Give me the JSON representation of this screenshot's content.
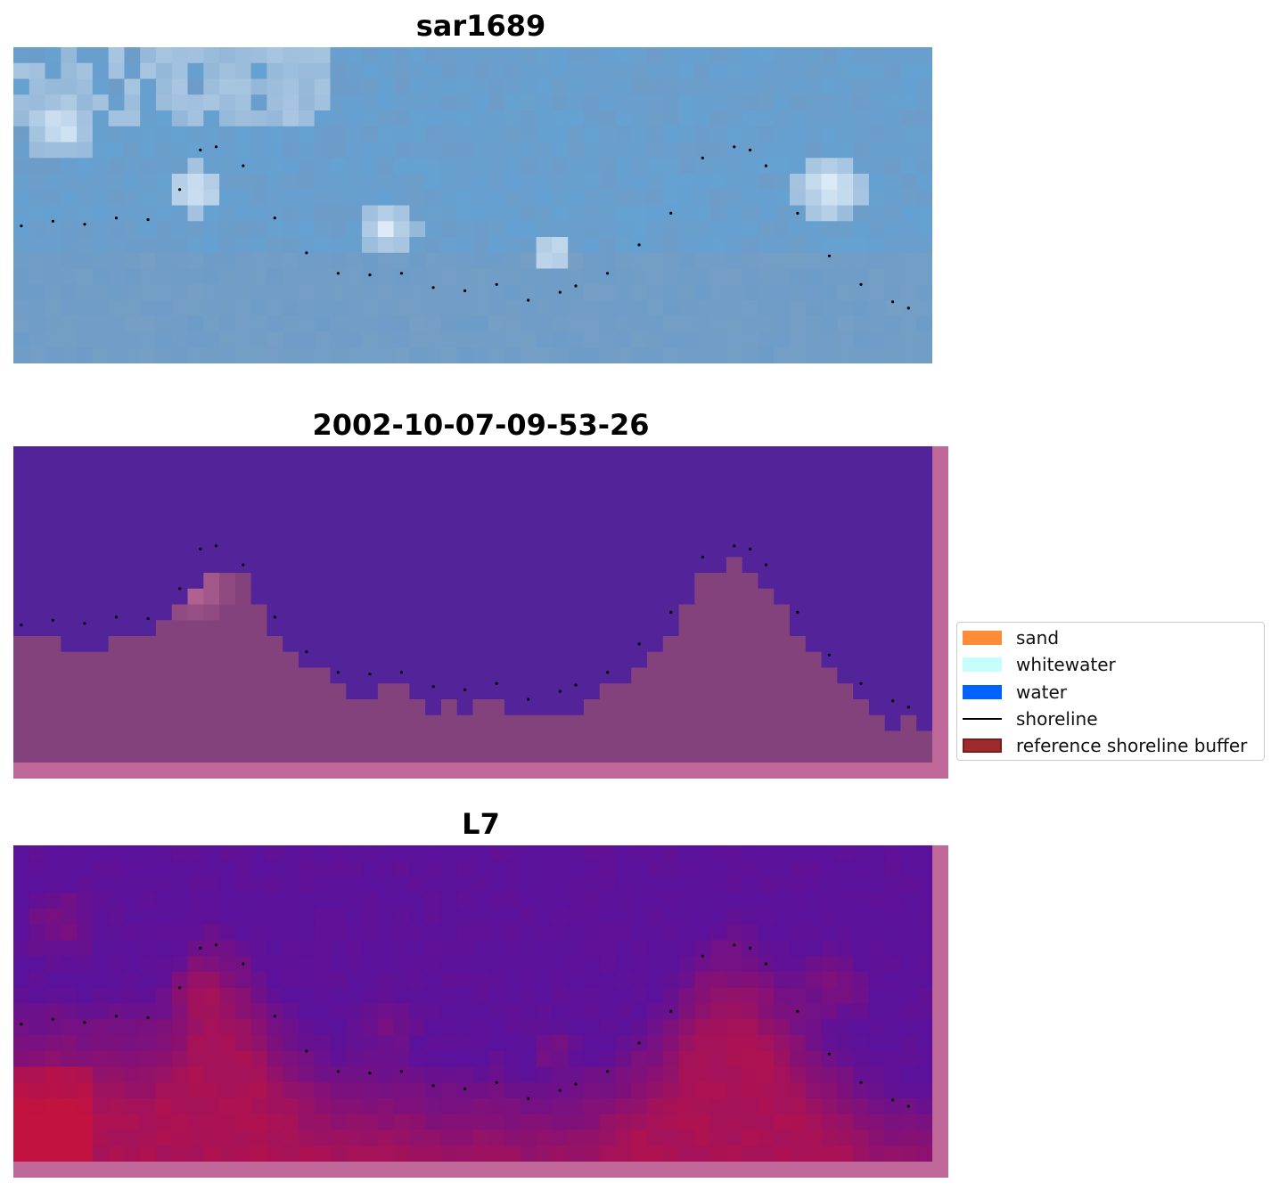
{
  "chart_data": [
    {
      "type": "heatmap",
      "title": "sar1689",
      "description_colors": {
        "base": "#6e9cc8",
        "bright": "#eef8ff"
      },
      "shoreline": {
        "x": [
          0.5,
          2.5,
          4.5,
          6.5,
          8.5,
          10.5,
          11.8,
          12.8,
          14.5,
          16.5,
          18.5,
          20.5,
          22.5,
          24.5,
          26.5,
          28.5,
          30.5,
          32.5,
          34.5,
          35.5,
          37.5,
          39.5,
          41.5,
          43.5,
          45.5,
          46.5,
          47.5,
          49.5,
          51.5,
          53.5,
          55.5,
          56.5
        ],
        "y": [
          11.3,
          11.0,
          11.2,
          10.8,
          10.9,
          9.0,
          6.5,
          6.3,
          7.5,
          10.8,
          13.0,
          14.3,
          14.4,
          14.3,
          15.2,
          15.4,
          15.0,
          16.0,
          15.5,
          15.1,
          14.3,
          12.5,
          10.5,
          7.0,
          6.3,
          6.5,
          7.5,
          10.5,
          13.2,
          15.0,
          16.1,
          16.5
        ]
      },
      "grid": false
    },
    {
      "type": "heatmap",
      "title": "2002-10-07-09-53-26",
      "classes": {
        "water": "#53239a",
        "land": "#84427d",
        "buffer_edge": "#c0679a"
      },
      "grid": false
    },
    {
      "type": "heatmap",
      "title": "L7",
      "colors": {
        "low": "#5a119c",
        "high": "#c2123f",
        "buffer_edge": "#c0679a"
      },
      "grid": false
    }
  ],
  "legend": {
    "placement": "center-right",
    "items": [
      {
        "label": "sand",
        "kind": "patch",
        "color": "#ff8c38"
      },
      {
        "label": "whitewater",
        "kind": "patch",
        "color": "#c8fdfd"
      },
      {
        "label": "water",
        "kind": "patch",
        "color": "#0063ff"
      },
      {
        "label": "shoreline",
        "kind": "line",
        "color": "#000000"
      },
      {
        "label": "reference shoreline buffer",
        "kind": "patch",
        "color": "#9e2b2b"
      }
    ]
  }
}
